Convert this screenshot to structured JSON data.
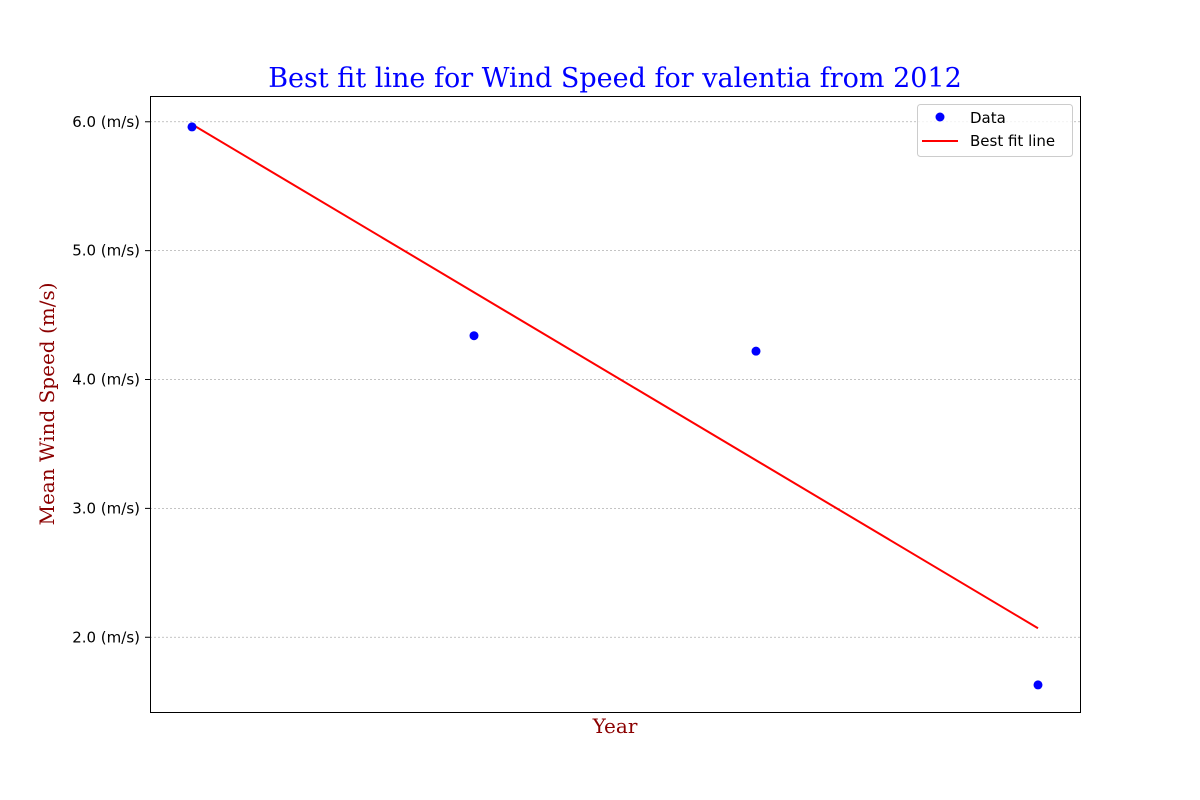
{
  "chart_data": {
    "type": "scatter",
    "title": "Best fit line for Wind Speed for valentia from 2012",
    "xlabel": "Year",
    "ylabel": "Mean Wind Speed (m/s)",
    "x_tick_labels": [],
    "ylim": [
      1.42,
      6.2
    ],
    "y_ticks": [
      2.0,
      3.0,
      4.0,
      5.0,
      6.0
    ],
    "y_tick_labels": [
      "2.0 (m/s)",
      "3.0 (m/s)",
      "4.0 (m/s)",
      "5.0 (m/s)",
      "6.0 (m/s)"
    ],
    "grid": "horizontal",
    "legend_position": "top-right",
    "series": [
      {
        "name": "Data",
        "kind": "points",
        "color": "#0000ff",
        "y": [
          5.96,
          4.34,
          4.22,
          1.63
        ]
      },
      {
        "name": "Best fit line",
        "kind": "line",
        "color": "#ff0000",
        "y": [
          5.98,
          2.07
        ]
      }
    ],
    "colors": {
      "title": "#0000ff",
      "axis_label": "#8b0000",
      "grid": "#b0b0b0",
      "axes": "#000000"
    }
  }
}
